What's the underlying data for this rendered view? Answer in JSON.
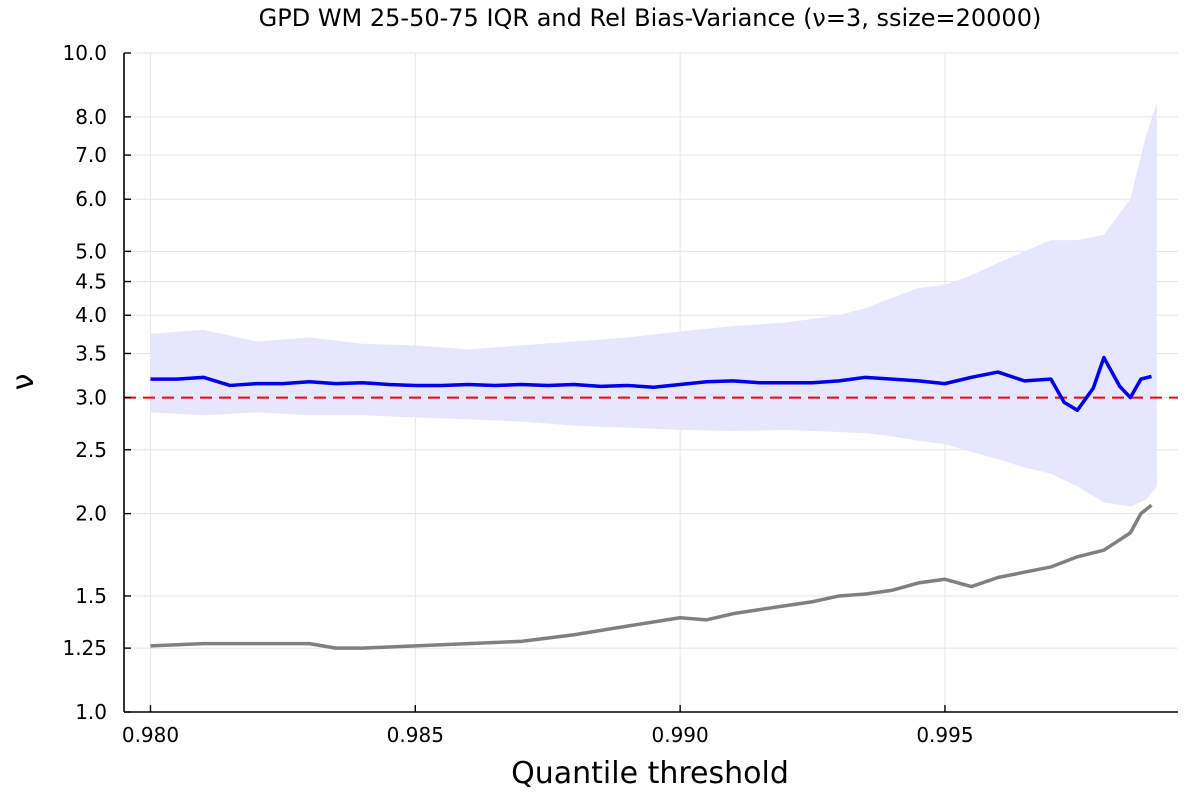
{
  "chart_data": {
    "type": "line",
    "title": "GPD WM 25-50-75 IQR and Rel Bias-Variance (ν=3, ssize=20000)",
    "xlabel": "Quantile threshold",
    "ylabel": "ν",
    "y_scale": "log",
    "xlim": [
      0.9795,
      0.9994
    ],
    "ylim": [
      1.0,
      10.0
    ],
    "grid": true,
    "legend": "none",
    "x_ticks": [
      "0.980",
      "0.985",
      "0.990",
      "0.995"
    ],
    "x_tick_values": [
      0.98,
      0.985,
      0.99,
      0.995
    ],
    "y_ticks": [
      "1.0",
      "1.25",
      "1.5",
      "2.0",
      "2.5",
      "3.0",
      "3.5",
      "4.0",
      "4.5",
      "5.0",
      "6.0",
      "7.0",
      "8.0",
      "10.0"
    ],
    "y_tick_values": [
      1.0,
      1.25,
      1.5,
      2.0,
      2.5,
      3.0,
      3.5,
      4.0,
      4.5,
      5.0,
      6.0,
      7.0,
      8.0,
      10.0
    ],
    "reference_line": {
      "y": 3.0,
      "color": "#ff0000",
      "style": "dashed"
    },
    "series": [
      {
        "kind": "band",
        "color": "#e6e6ff",
        "x": [
          0.98,
          0.981,
          0.982,
          0.983,
          0.984,
          0.985,
          0.986,
          0.987,
          0.988,
          0.989,
          0.99,
          0.991,
          0.992,
          0.993,
          0.9935,
          0.994,
          0.9945,
          0.995,
          0.9955,
          0.996,
          0.9965,
          0.997,
          0.9975,
          0.998,
          0.9985,
          0.9988,
          0.999
        ],
        "upper": [
          3.75,
          3.8,
          3.65,
          3.7,
          3.62,
          3.6,
          3.55,
          3.6,
          3.65,
          3.7,
          3.78,
          3.85,
          3.9,
          4.0,
          4.1,
          4.25,
          4.4,
          4.45,
          4.6,
          4.8,
          5.0,
          5.2,
          5.2,
          5.3,
          6.0,
          7.5,
          8.4
        ],
        "lower": [
          2.85,
          2.82,
          2.85,
          2.82,
          2.82,
          2.8,
          2.78,
          2.76,
          2.72,
          2.7,
          2.68,
          2.67,
          2.68,
          2.66,
          2.65,
          2.62,
          2.58,
          2.55,
          2.48,
          2.42,
          2.35,
          2.3,
          2.2,
          2.08,
          2.05,
          2.1,
          2.2
        ]
      },
      {
        "kind": "line",
        "color": "#0000ee",
        "x": [
          0.98,
          0.9805,
          0.981,
          0.9815,
          0.982,
          0.9825,
          0.983,
          0.9835,
          0.984,
          0.9845,
          0.985,
          0.9855,
          0.986,
          0.9865,
          0.987,
          0.9875,
          0.988,
          0.9885,
          0.989,
          0.9895,
          0.99,
          0.9905,
          0.991,
          0.9915,
          0.992,
          0.9925,
          0.993,
          0.9935,
          0.994,
          0.9945,
          0.995,
          0.9955,
          0.996,
          0.9965,
          0.997,
          0.99725,
          0.9975,
          0.9978,
          0.998,
          0.9983,
          0.9985,
          0.9987,
          0.9989
        ],
        "values": [
          3.2,
          3.2,
          3.22,
          3.13,
          3.15,
          3.15,
          3.17,
          3.15,
          3.16,
          3.14,
          3.13,
          3.13,
          3.14,
          3.13,
          3.14,
          3.13,
          3.14,
          3.12,
          3.13,
          3.11,
          3.14,
          3.17,
          3.18,
          3.16,
          3.16,
          3.16,
          3.18,
          3.22,
          3.2,
          3.18,
          3.15,
          3.22,
          3.28,
          3.18,
          3.2,
          2.95,
          2.87,
          3.1,
          3.45,
          3.12,
          3.0,
          3.2,
          3.23
        ]
      },
      {
        "kind": "line",
        "color": "#808080",
        "x": [
          0.98,
          0.981,
          0.982,
          0.983,
          0.9835,
          0.984,
          0.985,
          0.986,
          0.987,
          0.988,
          0.989,
          0.99,
          0.9905,
          0.991,
          0.9915,
          0.992,
          0.9925,
          0.993,
          0.9935,
          0.994,
          0.9945,
          0.995,
          0.9955,
          0.996,
          0.9965,
          0.997,
          0.9975,
          0.998,
          0.9985,
          0.9987,
          0.9989
        ],
        "values": [
          1.26,
          1.27,
          1.27,
          1.27,
          1.25,
          1.25,
          1.26,
          1.27,
          1.28,
          1.31,
          1.35,
          1.39,
          1.38,
          1.41,
          1.43,
          1.45,
          1.47,
          1.5,
          1.51,
          1.53,
          1.57,
          1.59,
          1.55,
          1.6,
          1.63,
          1.66,
          1.72,
          1.76,
          1.87,
          2.0,
          2.06
        ]
      }
    ]
  }
}
